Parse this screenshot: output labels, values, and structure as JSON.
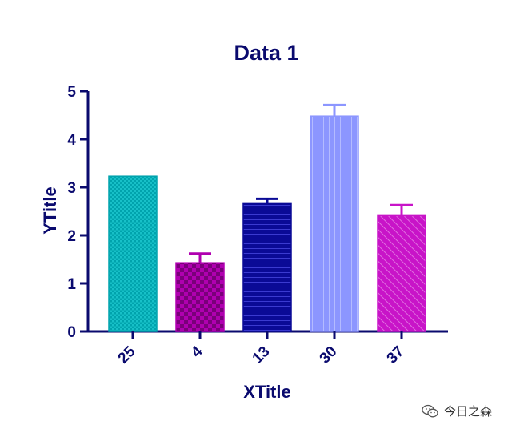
{
  "chart_data": {
    "type": "bar",
    "title": "Data 1",
    "xlabel": "XTitle",
    "ylabel": "YTitle",
    "categories": [
      "25",
      "4",
      "13",
      "30",
      "37"
    ],
    "values": [
      3.23,
      1.43,
      2.66,
      4.48,
      2.41
    ],
    "errors": [
      0.0,
      0.19,
      0.1,
      0.23,
      0.22
    ],
    "ylim": [
      0,
      5
    ],
    "yticks": [
      "0",
      "1",
      "2",
      "3",
      "4",
      "5"
    ],
    "colors": [
      "#00a3ad",
      "#b000b0",
      "#0a0a96",
      "#8c96ff",
      "#c814c8"
    ],
    "patterns": [
      "checker-fine",
      "checker",
      "hlines",
      "vlines",
      "diagonal"
    ],
    "grid": false,
    "legend": "none"
  },
  "watermark": {
    "text": "今日之森",
    "icon": "wechat-icon"
  }
}
